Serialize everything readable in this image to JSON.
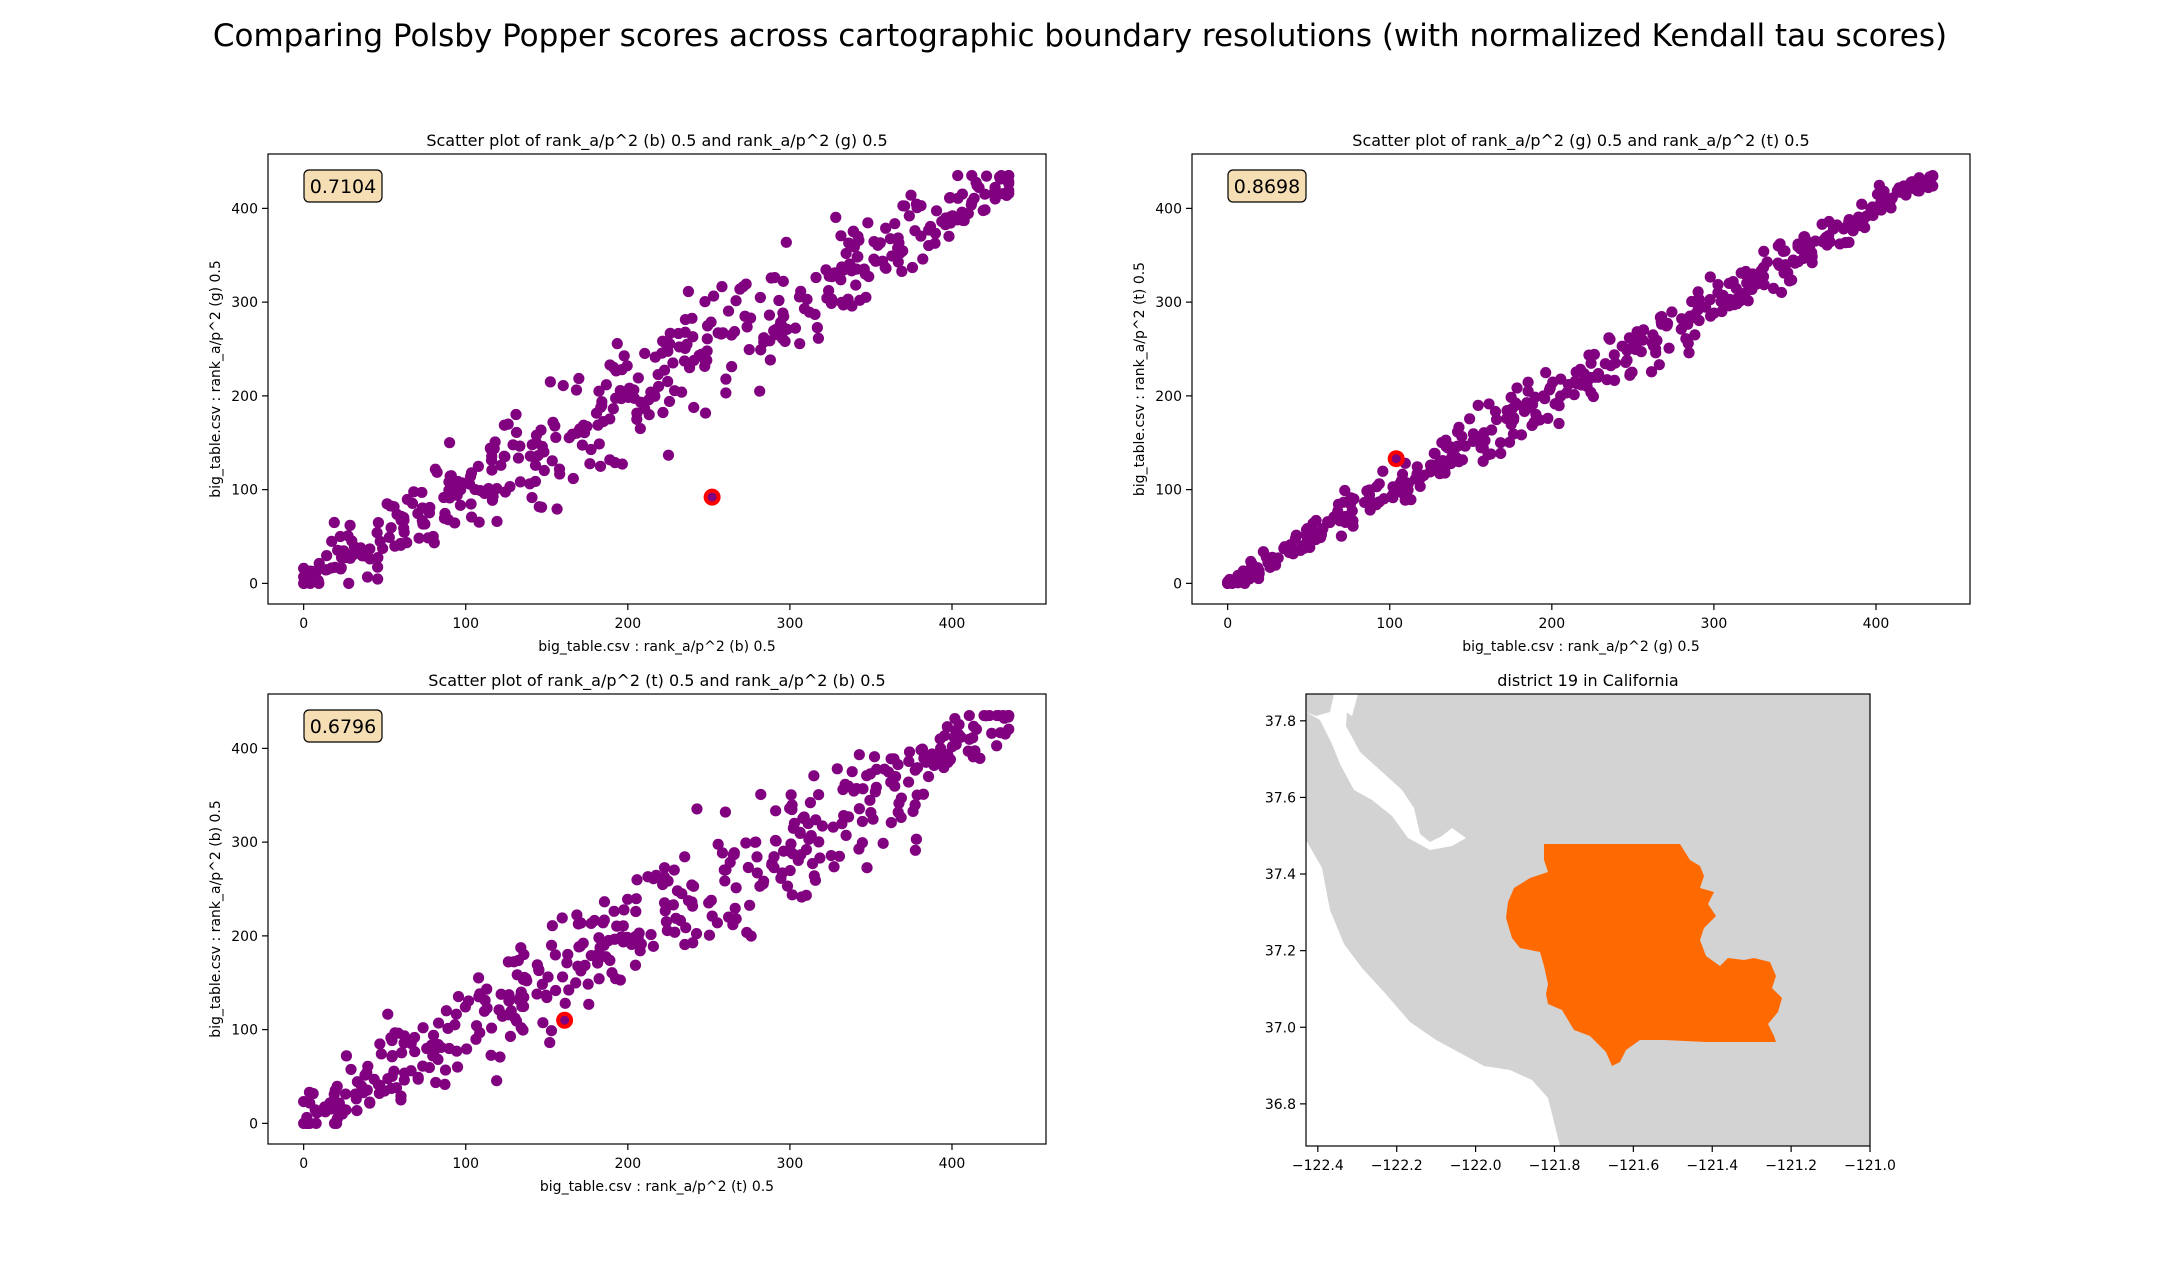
{
  "suptitle": "Comparing Polsby Popper scores across cartographic boundary resolutions (with normalized Kendall tau scores)",
  "colors": {
    "point": "#800080",
    "highlight": "#ff0000",
    "badge_fill": "#f5deb3",
    "district": "#ff6a00",
    "land": "#d3d3d3"
  },
  "chart_data": [
    {
      "type": "scatter",
      "title": "Scatter plot of rank_a/p^2 (b) 0.5 and rank_a/p^2 (g) 0.5",
      "xlabel": "big_table.csv : rank_a/p^2 (b) 0.5",
      "ylabel": "big_table.csv : rank_a/p^2 (g) 0.5",
      "xlim": [
        -22,
        458
      ],
      "ylim": [
        -22,
        458
      ],
      "xticks": [
        0,
        100,
        200,
        300,
        400
      ],
      "yticks": [
        0,
        100,
        200,
        300,
        400
      ],
      "annotation": "0.7104",
      "highlight": {
        "x": 252,
        "y": 92
      },
      "spread": 62,
      "grid": false
    },
    {
      "type": "scatter",
      "title": "Scatter plot of rank_a/p^2 (g) 0.5 and rank_a/p^2 (t) 0.5",
      "xlabel": "big_table.csv : rank_a/p^2 (g) 0.5",
      "ylabel": "big_table.csv : rank_a/p^2 (t) 0.5",
      "xlim": [
        -22,
        458
      ],
      "ylim": [
        -22,
        458
      ],
      "xticks": [
        0,
        100,
        200,
        300,
        400
      ],
      "yticks": [
        0,
        100,
        200,
        300,
        400
      ],
      "annotation": "0.8698",
      "highlight": {
        "x": 104,
        "y": 133
      },
      "spread": 28,
      "grid": false
    },
    {
      "type": "scatter",
      "title": "Scatter plot of rank_a/p^2 (t) 0.5 and rank_a/p^2 (b) 0.5",
      "xlabel": "big_table.csv : rank_a/p^2 (t) 0.5",
      "ylabel": "big_table.csv : rank_a/p^2 (b) 0.5",
      "xlim": [
        -22,
        458
      ],
      "ylim": [
        -22,
        458
      ],
      "xticks": [
        0,
        100,
        200,
        300,
        400
      ],
      "yticks": [
        0,
        100,
        200,
        300,
        400
      ],
      "annotation": "0.6796",
      "highlight": {
        "x": 161,
        "y": 110
      },
      "spread": 68,
      "grid": false
    }
  ],
  "map": {
    "title": "district 19 in California",
    "xlim": [
      -122.43,
      -121.0
    ],
    "ylim": [
      36.69,
      37.87
    ],
    "xticks": [
      -122.4,
      -122.2,
      -122.0,
      -121.8,
      -121.6,
      -121.4,
      -121.2,
      -121.0
    ],
    "xtick_labels": [
      "−122.4",
      "−122.2",
      "−122.0",
      "−121.8",
      "−121.6",
      "−121.4",
      "−121.2",
      "−121.0"
    ],
    "yticks": [
      36.8,
      37.0,
      37.2,
      37.4,
      37.6,
      37.8
    ],
    "ytick_labels": [
      "36.8",
      "37.0",
      "37.2",
      "37.4",
      "37.6",
      "37.8"
    ]
  }
}
